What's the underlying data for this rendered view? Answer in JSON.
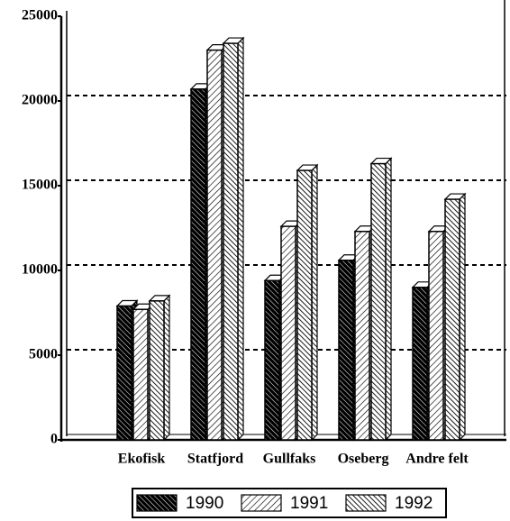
{
  "chart_data": {
    "type": "bar",
    "categories": [
      "Ekofisk",
      "Statfjord",
      "Gullfaks",
      "Oseberg",
      "Andre felt"
    ],
    "series": [
      {
        "name": "1990",
        "color": "#000000",
        "hatch": "dense",
        "values": [
          7900,
          20700,
          9400,
          10600,
          9000
        ]
      },
      {
        "name": "1991",
        "color": "#000000",
        "hatch": "forward",
        "values": [
          7700,
          23000,
          12600,
          12300,
          12300
        ]
      },
      {
        "name": "1992",
        "color": "#000000",
        "hatch": "backward",
        "values": [
          8200,
          23400,
          15900,
          16300,
          14200
        ]
      }
    ],
    "ylim": [
      0,
      25000
    ],
    "yticks": [
      0,
      5000,
      10000,
      15000,
      20000,
      25000
    ],
    "grid": true,
    "legend": "bottom"
  }
}
